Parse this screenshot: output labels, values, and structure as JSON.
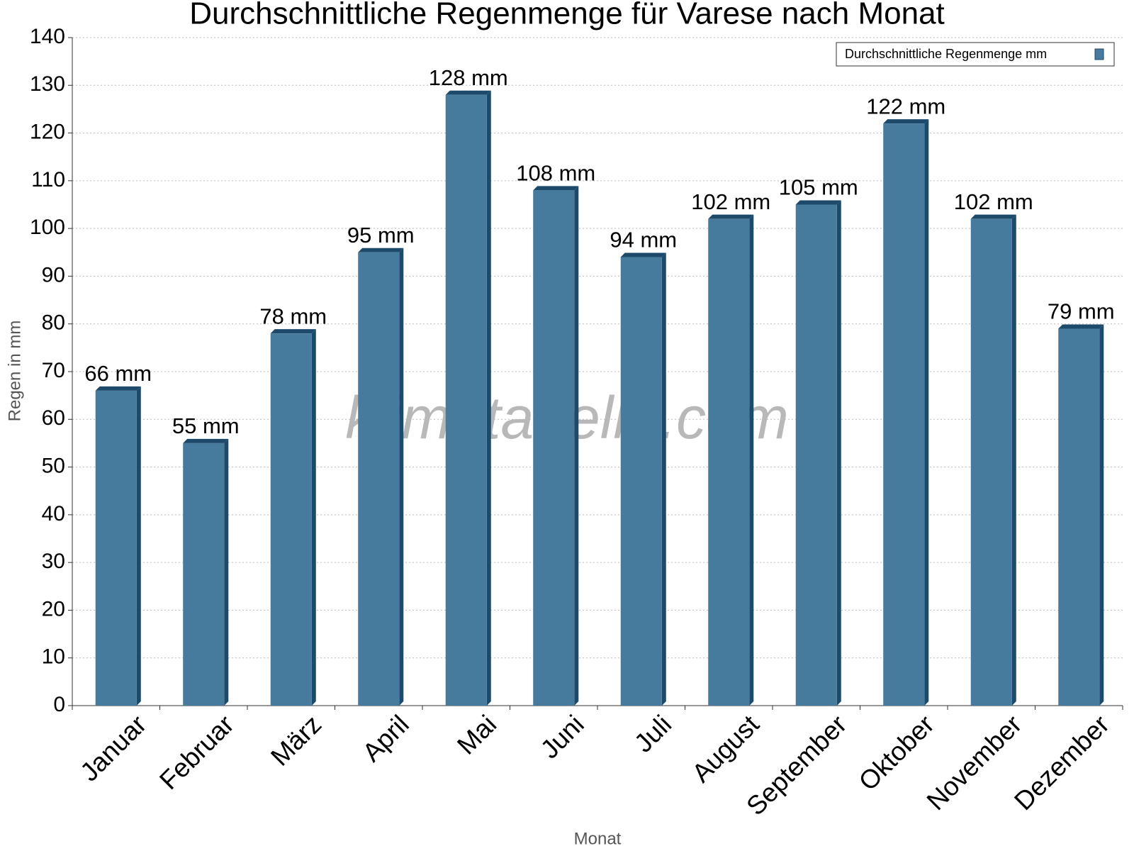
{
  "chart_data": {
    "type": "bar",
    "title": "Durchschnittliche Regenmenge für Varese nach Monat",
    "x_label": "Monat",
    "y_label": "Regen in mm",
    "watermark": "klimatabelle.com",
    "categories": [
      "Januar",
      "Februar",
      "März",
      "April",
      "Mai",
      "Juni",
      "Juli",
      "August",
      "September",
      "Oktober",
      "November",
      "Dezember"
    ],
    "series": [
      {
        "name": "Durchschnittliche Regenmenge mm",
        "color": "#467b9e",
        "values": [
          66,
          55,
          78,
          95,
          128,
          108,
          94,
          102,
          105,
          122,
          102,
          79
        ],
        "value_labels": [
          "66 mm",
          "55 mm",
          "78 mm",
          "95 mm",
          "128 mm",
          "108 mm",
          "94 mm",
          "102 mm",
          "105 mm",
          "122 mm",
          "102 mm",
          "79 mm"
        ]
      }
    ],
    "ylim": [
      0,
      140
    ],
    "yticks": [
      0,
      10,
      20,
      30,
      40,
      50,
      60,
      70,
      80,
      90,
      100,
      110,
      120,
      130,
      140
    ],
    "grid": true,
    "legend": "upper right"
  }
}
